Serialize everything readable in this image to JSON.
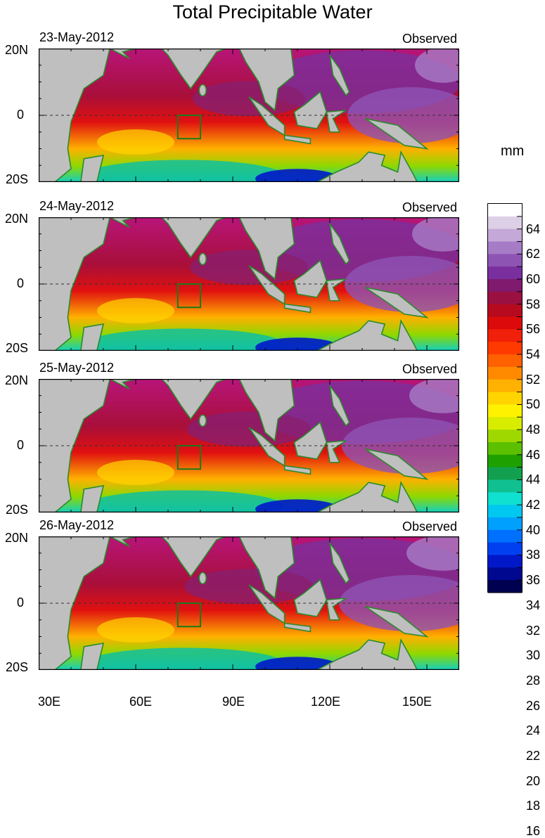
{
  "title": "Total Precipitable Water",
  "panels": [
    {
      "date": "23-May-2012",
      "label": "Observed"
    },
    {
      "date": "24-May-2012",
      "label": "Observed"
    },
    {
      "date": "25-May-2012",
      "label": "Observed"
    },
    {
      "date": "26-May-2012",
      "label": "Observed"
    }
  ],
  "lat_labels": [
    "20N",
    "0",
    "20S"
  ],
  "lon_labels": [
    "30E",
    "60E",
    "90E",
    "120E",
    "150E"
  ],
  "colorbar": {
    "unit": "mm",
    "labels": [
      "64",
      "62",
      "60",
      "58",
      "56",
      "54",
      "52",
      "50",
      "48",
      "46",
      "44",
      "42",
      "40",
      "38",
      "36",
      "34",
      "32",
      "30",
      "28",
      "26",
      "24",
      "22",
      "20",
      "18",
      "16"
    ],
    "colors": [
      "#ffffff",
      "#ddd0e6",
      "#c4a8d8",
      "#a77cc6",
      "#8e54b4",
      "#7a2f9e",
      "#7f1a6e",
      "#9a1040",
      "#b80a1e",
      "#dc0a0a",
      "#f0200a",
      "#ff3a00",
      "#ff6000",
      "#ff8a00",
      "#ffb000",
      "#ffd400",
      "#fff200",
      "#d8ec00",
      "#9ed800",
      "#5cc000",
      "#1ea000",
      "#12a050",
      "#10c090",
      "#10e0d0",
      "#00c8f0",
      "#00a0ff",
      "#0070ff",
      "#0040f0",
      "#0018c8",
      "#000890",
      "#000050"
    ]
  },
  "land_color": "#bfbfbf",
  "coast_color": "#2b8a2b"
}
